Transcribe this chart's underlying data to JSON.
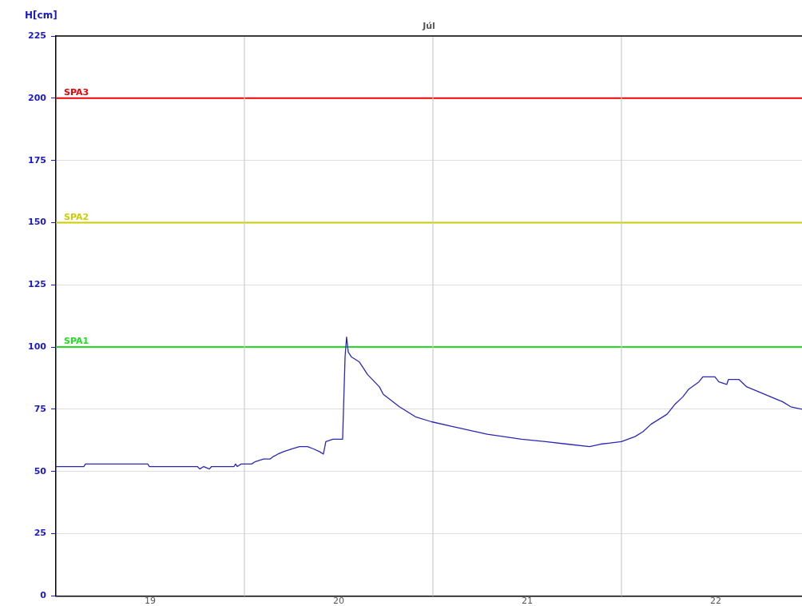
{
  "chart_data": {
    "type": "line",
    "title": "Júl",
    "ylabel": "H[cm]",
    "xlim": [
      19,
      22.958
    ],
    "xticks": [
      {
        "value": 19.5,
        "label": "19"
      },
      {
        "value": 20.5,
        "label": "20"
      },
      {
        "value": 21.5,
        "label": "21"
      },
      {
        "value": 22.5,
        "label": "22"
      }
    ],
    "ylim": [
      0,
      225
    ],
    "yticks": [
      0,
      25,
      50,
      75,
      100,
      125,
      150,
      175,
      200,
      225
    ],
    "grid": "y",
    "marker": "none",
    "line_style": "solid",
    "legend": false,
    "ref_lines": [
      {
        "axis": "y",
        "value": 100,
        "label": "SPA1",
        "color": "#22dd22"
      },
      {
        "axis": "y",
        "value": 150,
        "label": "SPA2",
        "color": "#cccc00"
      },
      {
        "axis": "y",
        "value": 200,
        "label": "SPA3",
        "color": "#ee0000"
      },
      {
        "axis": "x",
        "value": 20,
        "color": "#cccccc"
      },
      {
        "axis": "x",
        "value": 21,
        "color": "#cccccc"
      },
      {
        "axis": "x",
        "value": 22,
        "color": "#cccccc"
      }
    ],
    "series": [
      {
        "color": "#2828b8",
        "x": [
          19.0,
          19.148,
          19.157,
          19.487,
          19.496,
          19.75,
          19.763,
          19.784,
          19.814,
          19.826,
          19.945,
          19.953,
          19.962,
          19.983,
          20.038,
          20.059,
          20.102,
          20.136,
          20.153,
          20.178,
          20.208,
          20.25,
          20.292,
          20.335,
          20.369,
          20.398,
          20.419,
          20.432,
          20.47,
          20.521,
          20.534,
          20.542,
          20.551,
          20.568,
          20.61,
          20.653,
          20.716,
          20.737,
          20.822,
          20.907,
          20.992,
          21.106,
          21.288,
          21.47,
          21.597,
          21.712,
          21.831,
          21.89,
          22.0,
          22.072,
          22.114,
          22.157,
          22.242,
          22.284,
          22.326,
          22.356,
          22.411,
          22.432,
          22.496,
          22.517,
          22.559,
          22.568,
          22.623,
          22.665,
          22.729,
          22.792,
          22.856,
          22.898,
          22.958
        ],
        "values": [
          52,
          52,
          53,
          53,
          52,
          52,
          51,
          52,
          51,
          52,
          52,
          53,
          52,
          53,
          53,
          54,
          55,
          55,
          56,
          57,
          58,
          59,
          60,
          60,
          59,
          58,
          57,
          62,
          63,
          63,
          96,
          104,
          98,
          96,
          94,
          89,
          84,
          81,
          76,
          72,
          70,
          68,
          65,
          63,
          62,
          61,
          60,
          61,
          62,
          64,
          66,
          69,
          73,
          77,
          80,
          83,
          86,
          88,
          88,
          86,
          85,
          87,
          87,
          84,
          82,
          80,
          78,
          76,
          75
        ]
      }
    ]
  }
}
